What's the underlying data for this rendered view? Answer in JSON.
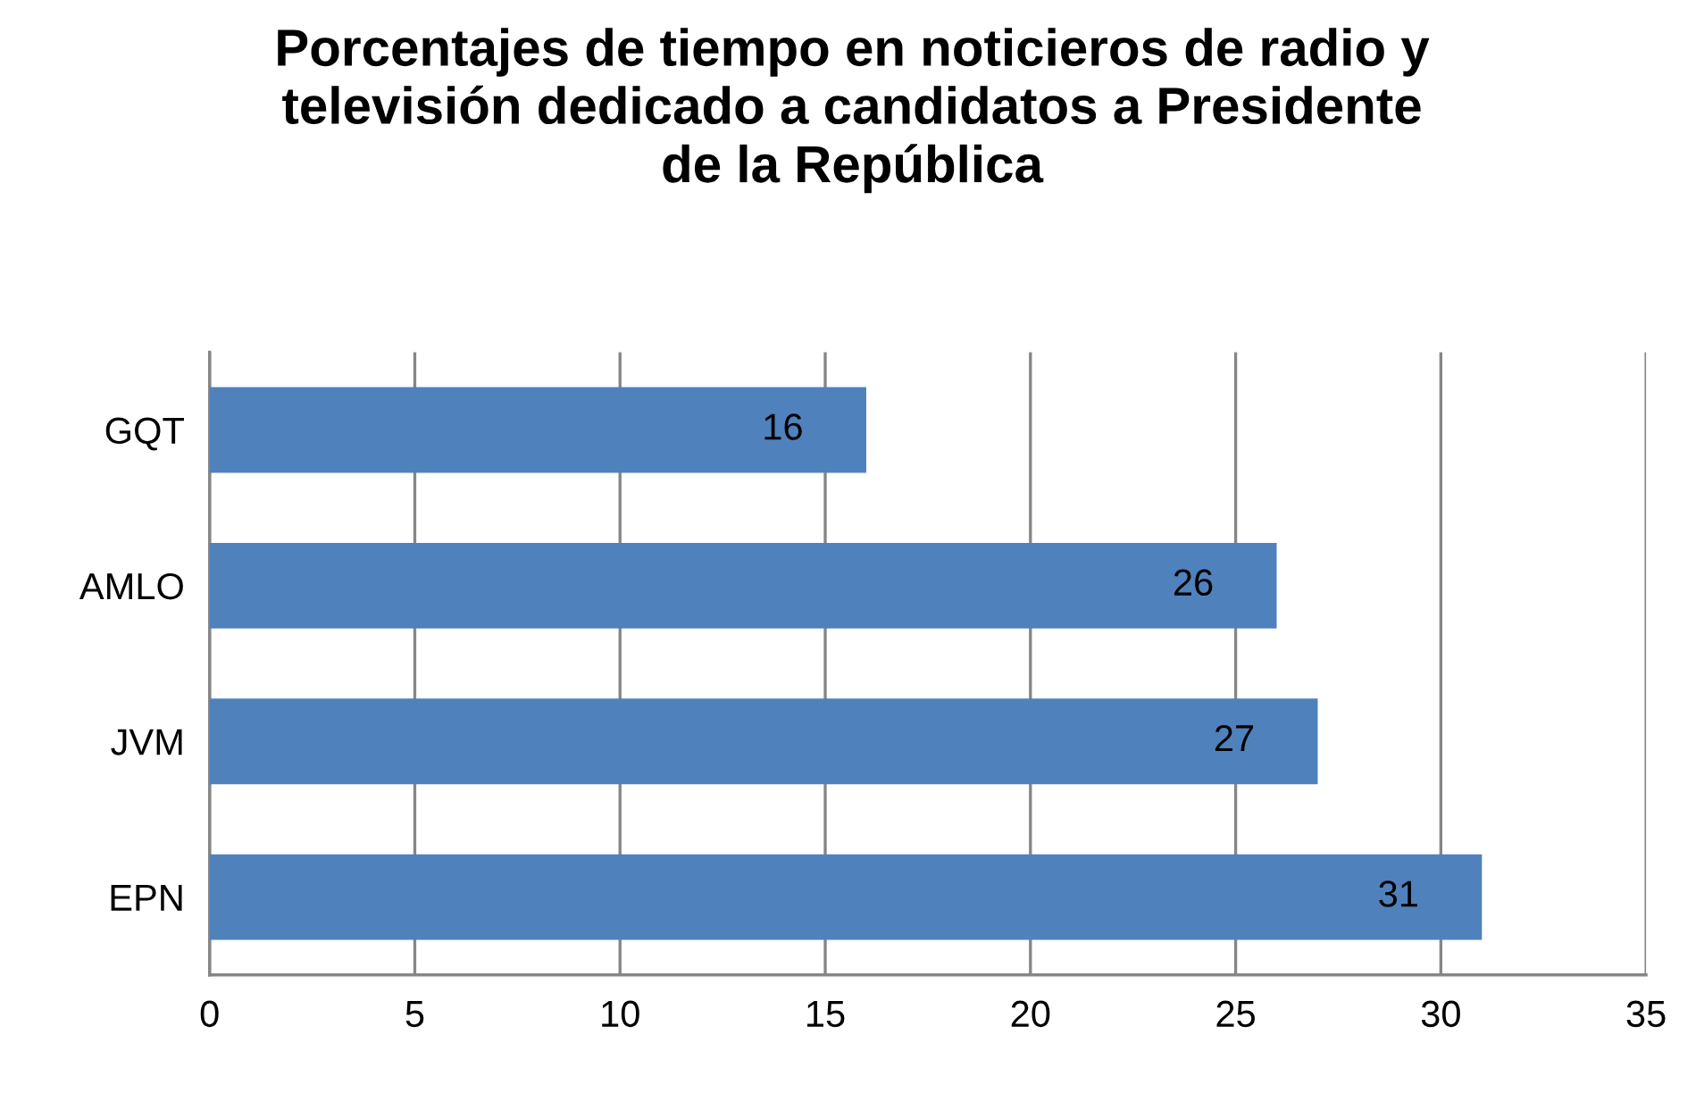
{
  "chart_data": {
    "type": "bar",
    "orientation": "horizontal",
    "title": "Porcentajes de tiempo en noticieros de radio y\ntelevisión dedicado a candidatos a Presidente\nde la República",
    "categories": [
      "GQT",
      "AMLO",
      "JVM",
      "EPN"
    ],
    "values": [
      16,
      26,
      27,
      31
    ],
    "color": "#4f81bd",
    "xlim": [
      0,
      35
    ],
    "xticks": [
      0,
      5,
      10,
      15,
      20,
      25,
      30,
      35
    ],
    "grid": "x",
    "data_labels": true
  }
}
